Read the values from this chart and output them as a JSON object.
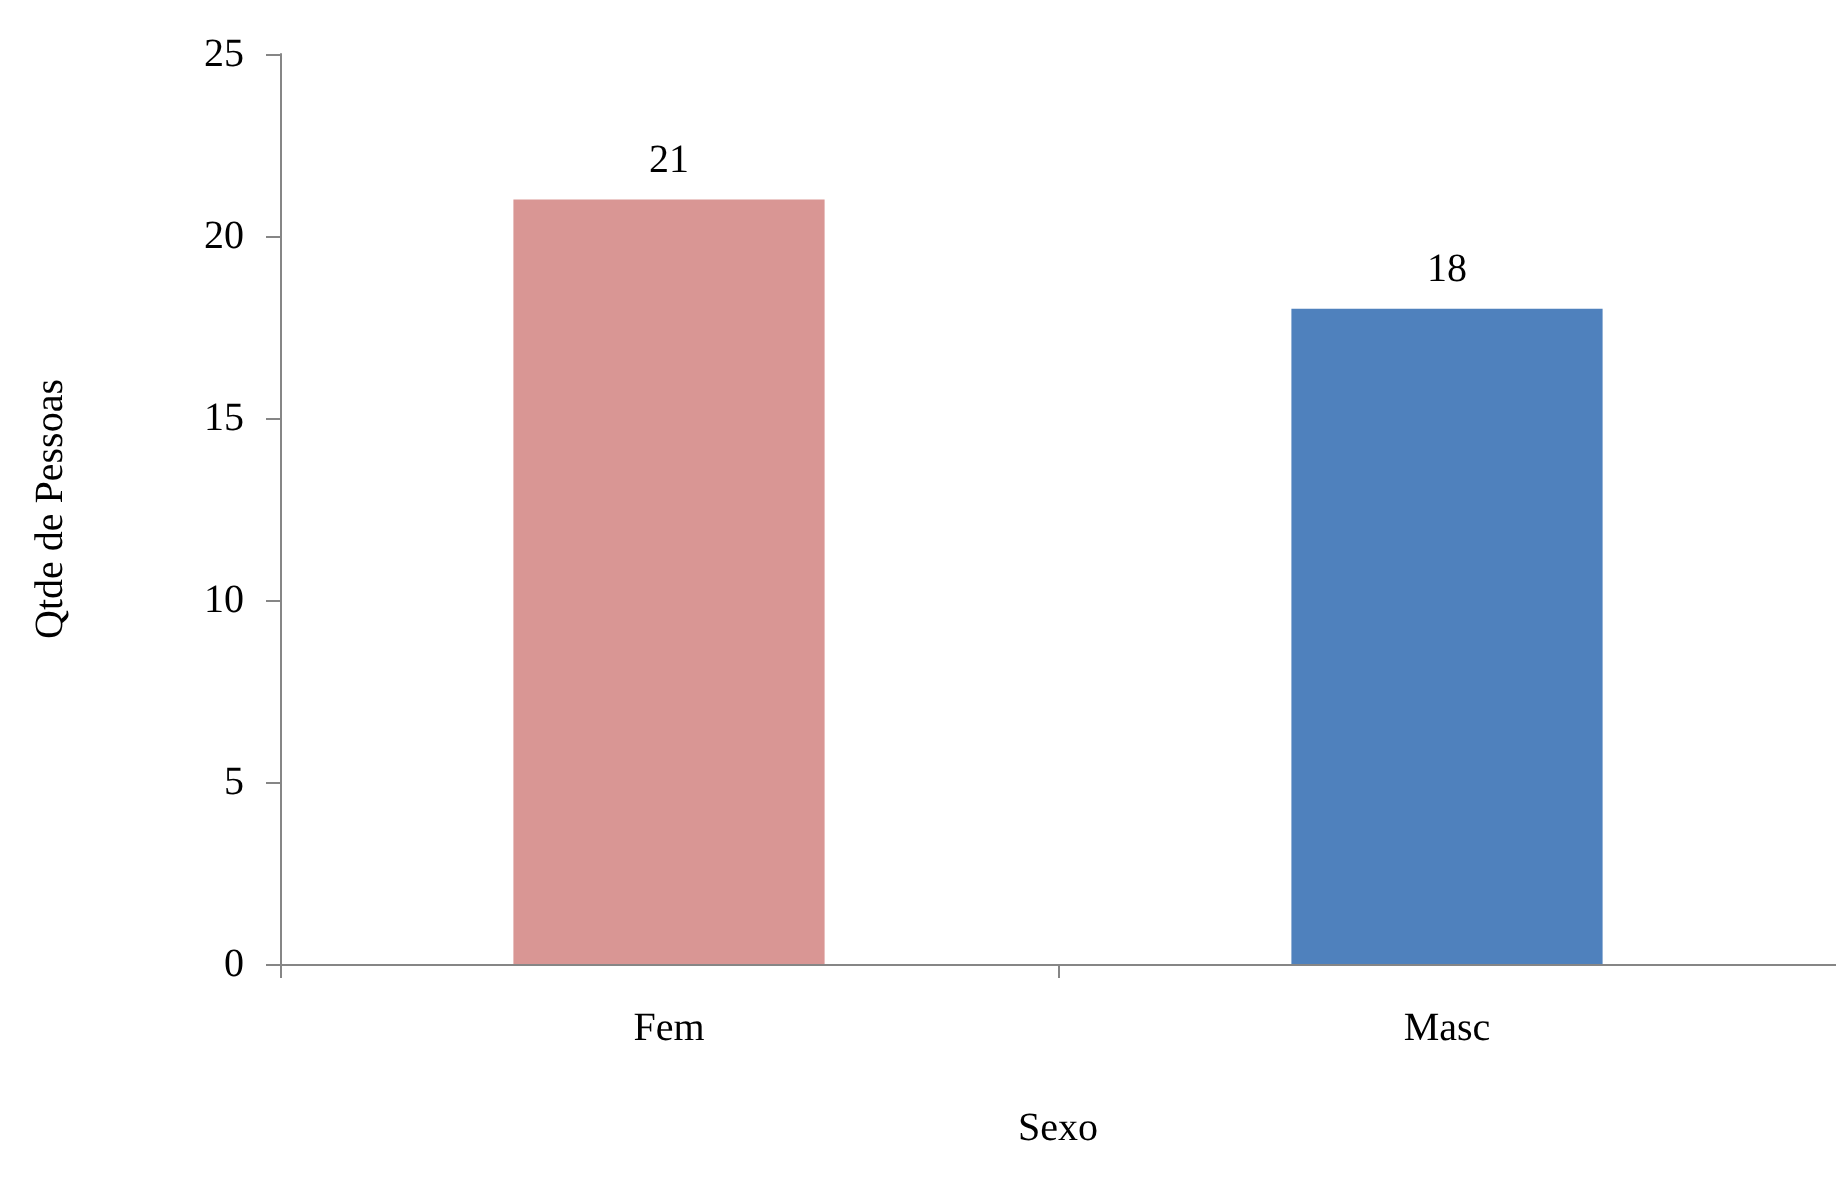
{
  "chart_data": {
    "type": "bar",
    "xlabel": "Sexo",
    "ylabel": "Qtde de Pessoas",
    "categories": [
      "Fem",
      "Masc"
    ],
    "values": [
      21,
      18
    ],
    "colors": [
      "#d99694",
      "#4f81bd"
    ],
    "ylim": [
      0,
      25
    ],
    "yticks": [
      0,
      5,
      10,
      15,
      20,
      25
    ],
    "grid": false,
    "data_labels": true
  }
}
